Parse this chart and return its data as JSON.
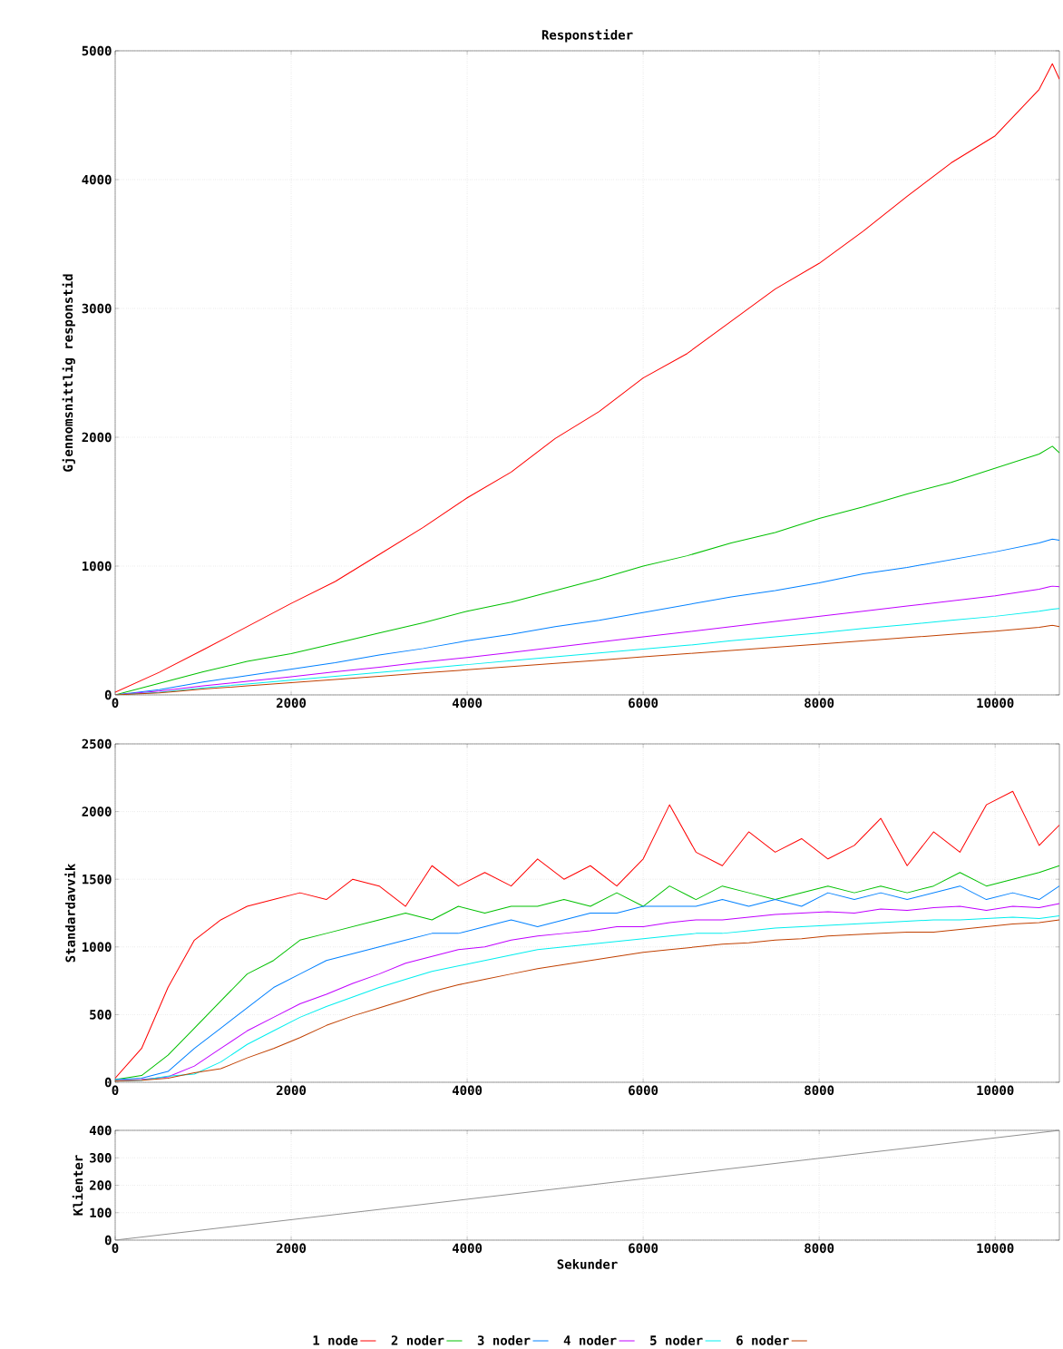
{
  "chart_data": [
    {
      "type": "line",
      "title": "Responstider",
      "ylabel": "Gjennomsnittlig responstid",
      "xlim": [
        0,
        10730
      ],
      "ylim": [
        0,
        5000
      ],
      "xticks": [
        0,
        2000,
        4000,
        6000,
        8000,
        10000
      ],
      "yticks": [
        0,
        1000,
        2000,
        3000,
        4000,
        5000
      ],
      "grid": true,
      "legend": "bottom",
      "marker": "none",
      "line_style": "solid",
      "x": [
        0,
        500,
        1000,
        1500,
        2000,
        2500,
        3000,
        3500,
        4000,
        4500,
        5000,
        5500,
        6000,
        6500,
        7000,
        7500,
        8000,
        8500,
        9000,
        9500,
        10000,
        10500,
        10650,
        10730
      ],
      "series": [
        {
          "name": "1 node",
          "color": "#ff0000",
          "values": [
            20,
            175,
            350,
            530,
            710,
            880,
            1090,
            1300,
            1530,
            1730,
            1990,
            2200,
            2460,
            2650,
            2900,
            3150,
            3350,
            3600,
            3870,
            4130,
            4340,
            4700,
            4900,
            4780
          ]
        },
        {
          "name": "2 noder",
          "color": "#00c000",
          "values": [
            0,
            90,
            180,
            260,
            320,
            400,
            480,
            560,
            650,
            720,
            810,
            900,
            1000,
            1080,
            1180,
            1260,
            1370,
            1460,
            1560,
            1650,
            1760,
            1870,
            1930,
            1880
          ]
        },
        {
          "name": "3 noder",
          "color": "#0080ff",
          "values": [
            0,
            40,
            100,
            150,
            200,
            250,
            310,
            360,
            420,
            470,
            530,
            580,
            640,
            700,
            760,
            810,
            870,
            940,
            990,
            1050,
            1110,
            1180,
            1210,
            1200
          ]
        },
        {
          "name": "4 noder",
          "color": "#c000ff",
          "values": [
            0,
            30,
            70,
            105,
            140,
            180,
            215,
            255,
            290,
            330,
            370,
            410,
            450,
            490,
            530,
            570,
            610,
            650,
            690,
            730,
            770,
            820,
            845,
            840
          ]
        },
        {
          "name": "5 noder",
          "color": "#00eeee",
          "values": [
            0,
            20,
            55,
            85,
            115,
            145,
            175,
            205,
            235,
            265,
            295,
            325,
            355,
            385,
            420,
            450,
            480,
            515,
            545,
            580,
            610,
            650,
            665,
            670
          ]
        },
        {
          "name": "6 noder",
          "color": "#c04000",
          "values": [
            0,
            15,
            45,
            70,
            95,
            120,
            145,
            170,
            195,
            220,
            245,
            270,
            295,
            320,
            345,
            370,
            395,
            420,
            445,
            470,
            495,
            525,
            540,
            530
          ]
        }
      ]
    },
    {
      "type": "line",
      "ylabel": "Standardavvik",
      "xlim": [
        0,
        10730
      ],
      "ylim": [
        0,
        2500
      ],
      "xticks": [
        0,
        2000,
        4000,
        6000,
        8000,
        10000
      ],
      "yticks": [
        0,
        500,
        1000,
        1500,
        2000,
        2500
      ],
      "grid": true,
      "marker": "none",
      "line_style": "solid",
      "x": [
        0,
        300,
        600,
        900,
        1200,
        1500,
        1800,
        2100,
        2400,
        2700,
        3000,
        3300,
        3600,
        3900,
        4200,
        4500,
        4800,
        5100,
        5400,
        5700,
        6000,
        6300,
        6600,
        6900,
        7200,
        7500,
        7800,
        8100,
        8400,
        8700,
        9000,
        9300,
        9600,
        9900,
        10200,
        10500,
        10730
      ],
      "series": [
        {
          "color": "#ff0000",
          "values": [
            30,
            250,
            700,
            1050,
            1200,
            1300,
            1350,
            1400,
            1350,
            1500,
            1450,
            1300,
            1600,
            1450,
            1550,
            1450,
            1650,
            1500,
            1600,
            1450,
            1650,
            2050,
            1700,
            1600,
            1850,
            1700,
            1800,
            1650,
            1750,
            1950,
            1600,
            1850,
            1700,
            2050,
            2150,
            1750,
            1900
          ]
        },
        {
          "color": "#00c000",
          "values": [
            20,
            50,
            200,
            400,
            600,
            800,
            900,
            1050,
            1100,
            1150,
            1200,
            1250,
            1200,
            1300,
            1250,
            1300,
            1300,
            1350,
            1300,
            1400,
            1300,
            1450,
            1350,
            1450,
            1400,
            1350,
            1400,
            1450,
            1400,
            1450,
            1400,
            1450,
            1550,
            1450,
            1500,
            1550,
            1600
          ]
        },
        {
          "color": "#0080ff",
          "values": [
            20,
            30,
            80,
            250,
            400,
            550,
            700,
            800,
            900,
            950,
            1000,
            1050,
            1100,
            1100,
            1150,
            1200,
            1150,
            1200,
            1250,
            1250,
            1300,
            1300,
            1300,
            1350,
            1300,
            1350,
            1300,
            1400,
            1350,
            1400,
            1350,
            1400,
            1450,
            1350,
            1400,
            1350,
            1450
          ]
        },
        {
          "color": "#c000ff",
          "values": [
            10,
            20,
            40,
            120,
            250,
            380,
            480,
            580,
            650,
            730,
            800,
            880,
            930,
            980,
            1000,
            1050,
            1080,
            1100,
            1120,
            1150,
            1150,
            1180,
            1200,
            1200,
            1220,
            1240,
            1250,
            1260,
            1250,
            1280,
            1270,
            1290,
            1300,
            1270,
            1300,
            1290,
            1320
          ]
        },
        {
          "color": "#00eeee",
          "values": [
            10,
            15,
            45,
            60,
            150,
            280,
            380,
            480,
            560,
            630,
            700,
            760,
            820,
            860,
            900,
            940,
            980,
            1000,
            1020,
            1040,
            1060,
            1080,
            1100,
            1100,
            1120,
            1140,
            1150,
            1160,
            1170,
            1180,
            1190,
            1200,
            1200,
            1210,
            1220,
            1210,
            1230
          ]
        },
        {
          "color": "#c04000",
          "values": [
            10,
            15,
            30,
            70,
            100,
            180,
            250,
            330,
            420,
            490,
            550,
            610,
            670,
            720,
            760,
            800,
            840,
            870,
            900,
            930,
            960,
            980,
            1000,
            1020,
            1030,
            1050,
            1060,
            1080,
            1090,
            1100,
            1110,
            1110,
            1130,
            1150,
            1170,
            1180,
            1200
          ]
        }
      ]
    },
    {
      "type": "line",
      "ylabel": "Klienter",
      "xlabel": "Sekunder",
      "xlim": [
        0,
        10730
      ],
      "ylim": [
        0,
        400
      ],
      "xticks": [
        0,
        2000,
        4000,
        6000,
        8000,
        10000
      ],
      "yticks": [
        0,
        100,
        200,
        300,
        400
      ],
      "grid": true,
      "marker": "none",
      "line_style": "solid",
      "x": [
        0,
        10730
      ],
      "series": [
        {
          "color": "#909090",
          "values": [
            0,
            400
          ]
        }
      ]
    }
  ]
}
